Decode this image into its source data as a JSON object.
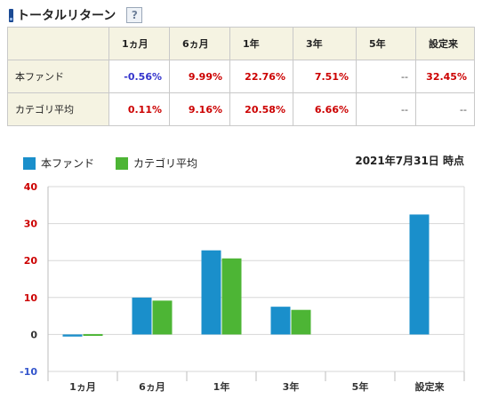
{
  "header": {
    "title": "トータルリターン",
    "help_label": "?"
  },
  "table": {
    "columns": [
      "",
      "1ヵ月",
      "6ヵ月",
      "1年",
      "3年",
      "5年",
      "設定来"
    ],
    "rows": [
      {
        "label": "本ファンド",
        "cells": [
          {
            "text": "-0.56%",
            "tone": "neg"
          },
          {
            "text": "9.99%",
            "tone": "pos"
          },
          {
            "text": "22.76%",
            "tone": "pos"
          },
          {
            "text": "7.51%",
            "tone": "pos"
          },
          {
            "text": "--",
            "tone": "dash"
          },
          {
            "text": "32.45%",
            "tone": "pos"
          }
        ]
      },
      {
        "label": "カテゴリ平均",
        "cells": [
          {
            "text": "0.11%",
            "tone": "pos"
          },
          {
            "text": "9.16%",
            "tone": "pos"
          },
          {
            "text": "20.58%",
            "tone": "pos"
          },
          {
            "text": "6.66%",
            "tone": "pos"
          },
          {
            "text": "--",
            "tone": "dash"
          },
          {
            "text": "--",
            "tone": "dash"
          }
        ]
      }
    ]
  },
  "legend": {
    "fund": "本ファンド",
    "category": "カテゴリ平均"
  },
  "as_of": "2021年7月31日 時点",
  "colors": {
    "fund": "#1a8fcb",
    "category": "#4db535",
    "zero_axis_label": "#333333",
    "negative_axis_label": "#3355cc",
    "positive_axis_label": "#cc0000"
  },
  "chart_data": {
    "type": "bar",
    "categories": [
      "1ヵ月",
      "6ヵ月",
      "1年",
      "3年",
      "5年",
      "設定来"
    ],
    "series": [
      {
        "name": "本ファンド",
        "values": [
          -0.56,
          9.99,
          22.76,
          7.51,
          null,
          32.45
        ]
      },
      {
        "name": "カテゴリ平均",
        "values": [
          0.11,
          9.16,
          20.58,
          6.66,
          null,
          null
        ]
      }
    ],
    "yticks": [
      40,
      30,
      20,
      10,
      0,
      -10
    ],
    "ylim": [
      -10,
      40
    ],
    "grid": true
  }
}
